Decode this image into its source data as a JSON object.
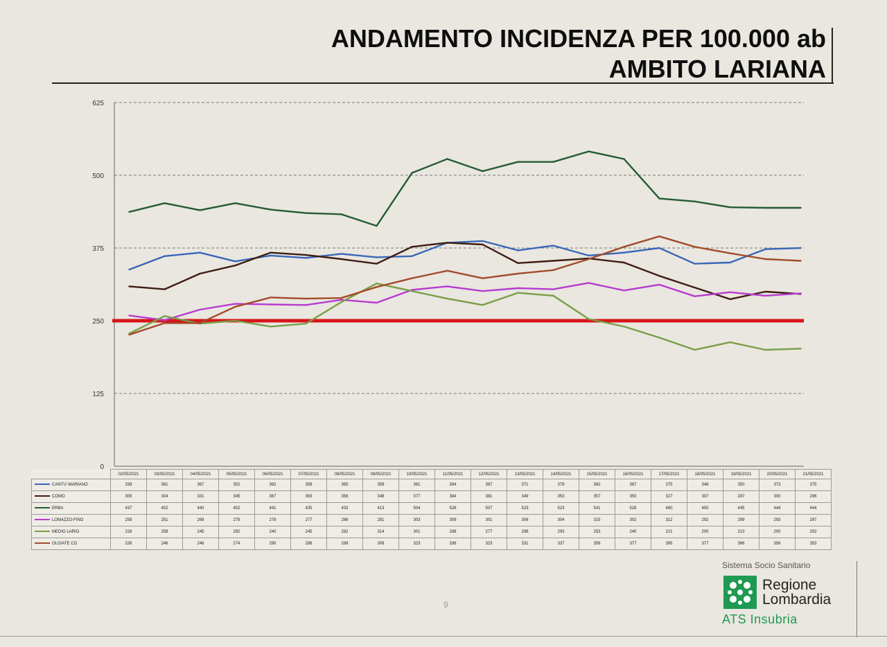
{
  "header": {
    "title_line1": "ANDAMENTO INCIDENZA PER 100.000 ab",
    "title_line2": "AMBITO LARIANA"
  },
  "chart_data": {
    "type": "line",
    "title": "ANDAMENTO INCIDENZA PER 100.000 ab AMBITO LARIANA",
    "xlabel": "",
    "ylabel": "",
    "ylim": [
      0,
      625
    ],
    "yticks": [
      "0",
      "125",
      "250",
      "375",
      "500",
      "625"
    ],
    "grid": true,
    "categories": [
      "02/05/2021",
      "03/05/2021",
      "04/05/2021",
      "05/05/2021",
      "06/05/2021",
      "07/05/2021",
      "08/05/2021",
      "09/05/2021",
      "10/05/2021",
      "11/05/2021",
      "12/05/2021",
      "13/05/2021",
      "14/05/2021",
      "15/05/2021",
      "16/05/2021",
      "17/05/2021",
      "18/05/2021",
      "19/05/2021",
      "20/05/2021",
      "21/05/2021"
    ],
    "threshold": {
      "value": 250,
      "color": "#d8141a"
    },
    "series": [
      {
        "name": "CANTU'-MARIANO",
        "color": "#3a66b8",
        "values": [
          338,
          361,
          367,
          352,
          362,
          358,
          365,
          359,
          361,
          384,
          387,
          371,
          379,
          362,
          367,
          375,
          348,
          350,
          373,
          375
        ]
      },
      {
        "name": "COMO",
        "color": "#3e1c12",
        "values": [
          309,
          304,
          331,
          345,
          367,
          363,
          356,
          348,
          377,
          384,
          381,
          349,
          353,
          357,
          350,
          327,
          307,
          287,
          300,
          296
        ]
      },
      {
        "name": "ERBA",
        "color": "#245a34",
        "values": [
          437,
          452,
          440,
          452,
          441,
          435,
          433,
          413,
          504,
          528,
          507,
          523,
          523,
          541,
          528,
          460,
          455,
          445,
          444,
          444
        ]
      },
      {
        "name": "LOMAZZO-FINO",
        "color": "#b83ad0",
        "values": [
          259,
          251,
          269,
          279,
          278,
          277,
          286,
          281,
          303,
          309,
          301,
          306,
          304,
          315,
          302,
          312,
          292,
          299,
          293,
          297
        ]
      },
      {
        "name": "MEDIO LARIO",
        "color": "#7a9e48",
        "values": [
          228,
          258,
          245,
          250,
          240,
          245,
          282,
          314,
          301,
          288,
          277,
          298,
          293,
          253,
          240,
          221,
          200,
          213,
          200,
          202
        ]
      },
      {
        "name": "OLGIATE CO",
        "color": "#a34a2a",
        "values": [
          226,
          246,
          246,
          274,
          290,
          288,
          289,
          308,
          323,
          336,
          323,
          331,
          337,
          356,
          377,
          395,
          377,
          366,
          356,
          353
        ]
      }
    ],
    "table": {
      "display_rows": [
        [
          "338",
          "361",
          "367",
          "352",
          "362",
          "358",
          "365",
          "359",
          "361",
          "384",
          "387",
          "371",
          "379",
          "362",
          "367",
          "375",
          "348",
          "350",
          "373",
          "375"
        ],
        [
          "309",
          "304",
          "331",
          "345",
          "367",
          "363",
          "356",
          "348",
          "377",
          "384",
          "381",
          "349",
          "353",
          "357",
          "350",
          "327",
          "307",
          "287",
          "300",
          "296"
        ],
        [
          "437",
          "452",
          "440",
          "452",
          "441",
          "435",
          "433",
          "413",
          "504",
          "528",
          "507",
          "523",
          "523",
          "541",
          "528",
          "460",
          "455",
          "445",
          "444",
          "444"
        ],
        [
          "259",
          "251",
          "269",
          "279",
          "278",
          "277",
          "286",
          "281",
          "303",
          "309",
          "301",
          "306",
          "304",
          "315",
          "302",
          "312",
          "292",
          "299",
          "293",
          "297"
        ],
        [
          "228",
          "258",
          "245",
          "250",
          "240",
          "245",
          "282",
          "314",
          "301",
          "288",
          "277",
          "298",
          "293",
          "253",
          "240",
          "221",
          "200",
          "213",
          "200",
          "202"
        ],
        [
          "226",
          "246",
          "246",
          "274",
          "290",
          "288",
          "289",
          "308",
          "323",
          "336",
          "323",
          "331",
          "337",
          "356",
          "377",
          "395",
          "377",
          "366",
          "356",
          "353"
        ]
      ]
    }
  },
  "footer": {
    "page_number": "9",
    "sistema": "Sistema Socio Sanitario",
    "regione": "Regione",
    "lombardia": "Lombardia",
    "ats": "ATS Insubria",
    "logo_icon": "regione-lombardia-rosa-camuna"
  }
}
